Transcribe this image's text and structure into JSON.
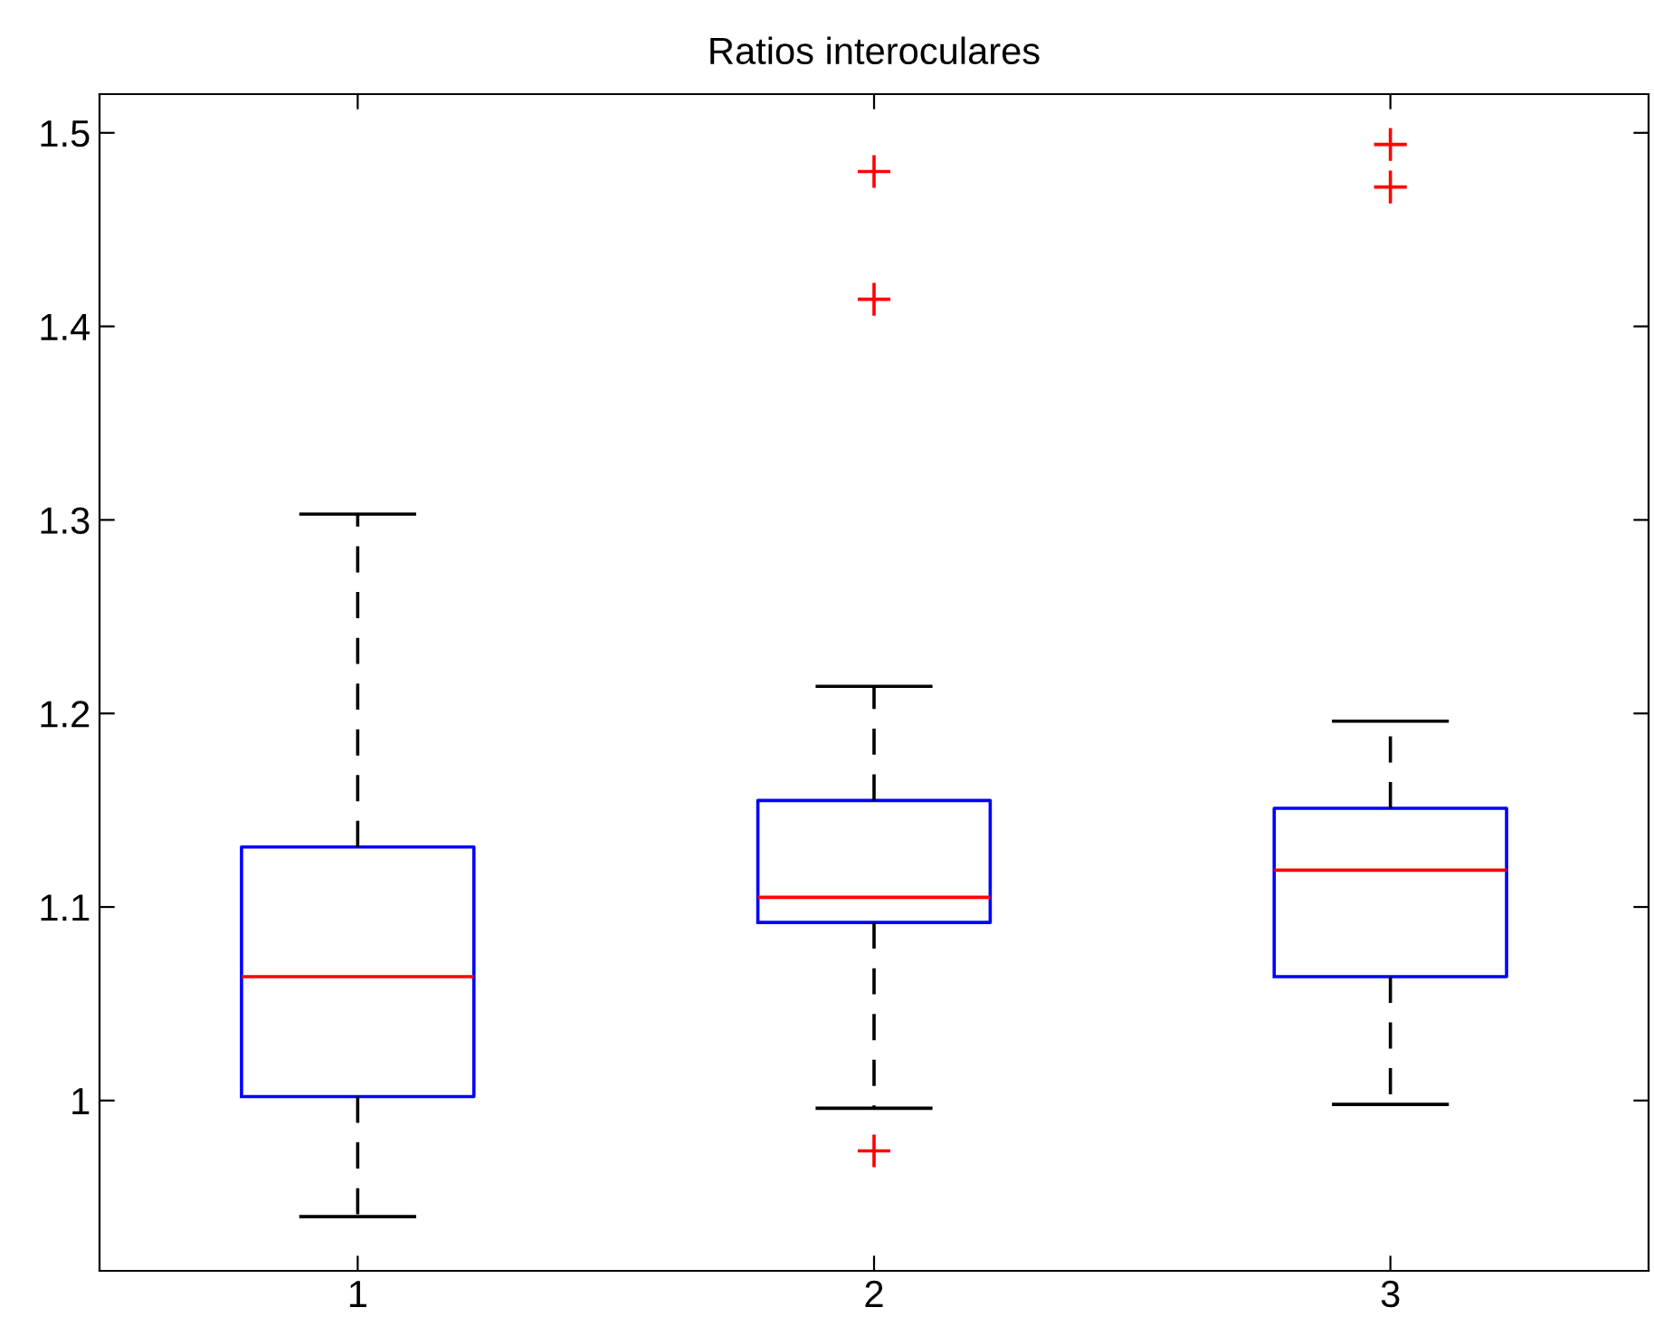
{
  "chart_data": {
    "type": "box",
    "title": "Ratios interoculares",
    "categories": [
      "1",
      "2",
      "3"
    ],
    "color": "#0000ff",
    "marker": "cross",
    "line_style": "dashed",
    "grid": false,
    "legend": false,
    "boxes": [
      {
        "low": 0.94,
        "q1": 1.002,
        "median": 1.064,
        "q3": 1.131,
        "high": 1.303
      },
      {
        "low": 0.996,
        "q1": 1.092,
        "median": 1.105,
        "q3": 1.155,
        "high": 1.214,
        "outliers": [
          1.48,
          1.414,
          0.974
        ]
      },
      {
        "low": 0.998,
        "q1": 1.064,
        "median": 1.119,
        "q3": 1.151,
        "high": 1.196,
        "outliers": [
          1.494,
          1.472
        ]
      }
    ],
    "ylim": [
      0.912,
      1.52
    ],
    "yticks": [
      1,
      1.1,
      1.2,
      1.3,
      1.4,
      1.5
    ]
  }
}
